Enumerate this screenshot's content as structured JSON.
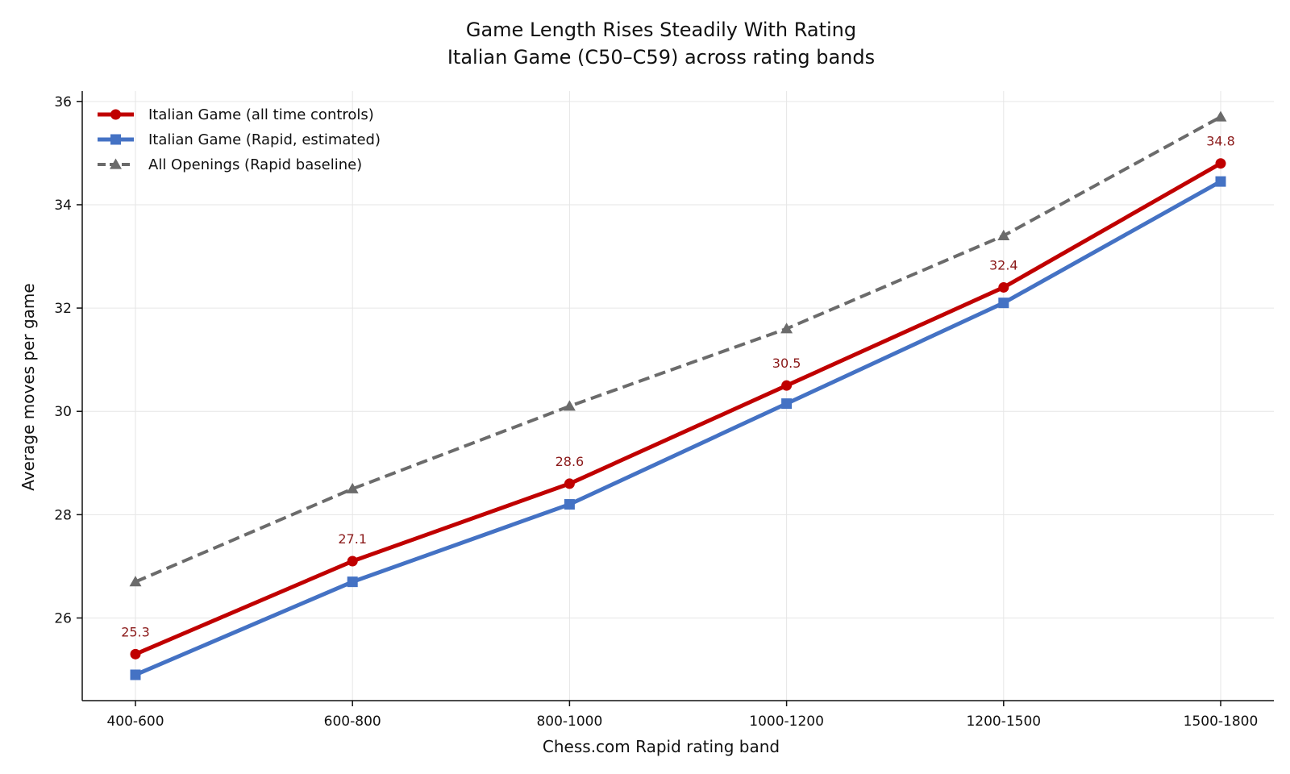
{
  "chart_data": {
    "type": "line",
    "title": "Game Length Rises Steadily With Rating",
    "subtitle": "Italian Game (C50–C59) across rating bands",
    "xlabel": "Chess.com Rapid rating band",
    "ylabel": "Average moves per game",
    "categories": [
      "400-600",
      "600-800",
      "800-1000",
      "1000-1200",
      "1200-1500",
      "1500-1800"
    ],
    "ylim": [
      24.4,
      36.2
    ],
    "yticks": [
      26,
      28,
      30,
      32,
      34,
      36
    ],
    "grid": true,
    "legend_position": "top-left",
    "series": [
      {
        "name": "Italian Game (all time controls)",
        "values": [
          25.3,
          27.1,
          28.6,
          30.5,
          32.4,
          34.8
        ],
        "color": "#c00000",
        "marker": "circle",
        "line_style": "solid",
        "data_labels": [
          "25.3",
          "27.1",
          "28.6",
          "30.5",
          "32.4",
          "34.8"
        ]
      },
      {
        "name": "Italian Game (Rapid, estimated)",
        "values": [
          24.9,
          26.7,
          28.2,
          30.15,
          32.1,
          34.45
        ],
        "color": "#4472c4",
        "marker": "square",
        "line_style": "solid"
      },
      {
        "name": "All Openings (Rapid baseline)",
        "values": [
          26.7,
          28.5,
          30.1,
          31.6,
          33.4,
          35.7
        ],
        "color": "#6b6b6b",
        "marker": "triangle",
        "line_style": "dashed"
      }
    ]
  }
}
